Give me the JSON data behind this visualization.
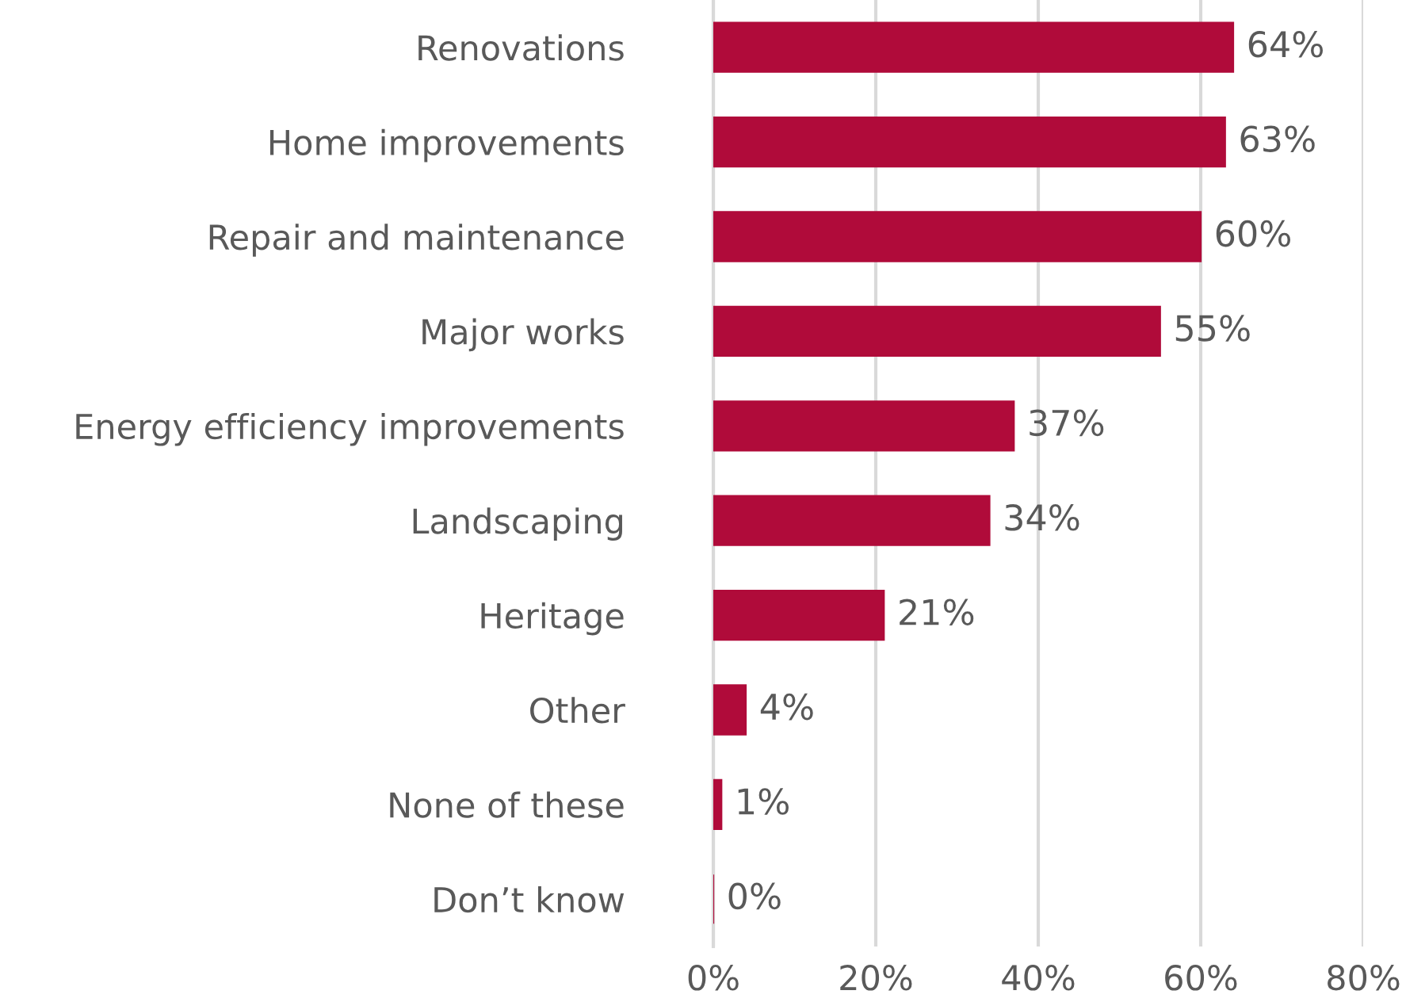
{
  "chart_data": {
    "type": "bar",
    "orientation": "horizontal",
    "categories": [
      "Renovations",
      "Home improvements",
      "Repair and maintenance",
      "Major works",
      "Energy efficiency improvements",
      "Landscaping",
      "Heritage",
      "Other",
      "None of these",
      "Don’t know"
    ],
    "values": [
      64,
      63,
      60,
      55,
      37,
      34,
      21,
      4,
      1,
      0
    ],
    "value_labels": [
      "64%",
      "63%",
      "60%",
      "55%",
      "37%",
      "34%",
      "21%",
      "4%",
      "1%",
      "0%"
    ],
    "color": "#b00b3a",
    "xlim": [
      0,
      80
    ],
    "xticks": [
      {
        "value": 0,
        "label": "0%"
      },
      {
        "value": 20,
        "label": "20%"
      },
      {
        "value": 40,
        "label": "40%"
      },
      {
        "value": 60,
        "label": "60%"
      },
      {
        "value": 80,
        "label": "80%"
      }
    ],
    "grid": "x"
  }
}
